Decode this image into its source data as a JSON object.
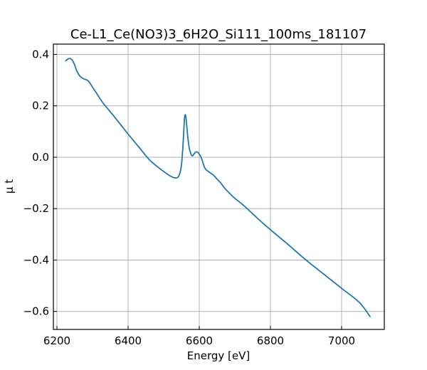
{
  "chart_data": {
    "type": "line",
    "title": "Ce-L1_Ce(NO3)3_6H2O_Si111_100ms_181107",
    "xlabel": "Energy [eV]",
    "ylabel": "μ t",
    "xlim": [
      6190,
      7120
    ],
    "ylim": [
      -0.67,
      0.44
    ],
    "xticks": [
      6200,
      6400,
      6600,
      6800,
      7000
    ],
    "xtick_labels": [
      "6200",
      "6400",
      "6600",
      "6800",
      "7000"
    ],
    "yticks": [
      0.4,
      0.2,
      0.0,
      -0.2,
      -0.4,
      -0.6
    ],
    "ytick_labels": [
      "0.4",
      "0.2",
      "0.0",
      "−0.2",
      "−0.4",
      "−0.6"
    ],
    "grid": true,
    "series": [
      {
        "color": "#1f77b4",
        "x": [
          6225,
          6232,
          6240,
          6248,
          6256,
          6265,
          6275,
          6285,
          6292,
          6300,
          6310,
          6320,
          6330,
          6345,
          6360,
          6380,
          6400,
          6430,
          6460,
          6490,
          6515,
          6530,
          6540,
          6546,
          6550,
          6553,
          6556,
          6559,
          6562,
          6565,
          6568,
          6572,
          6576,
          6580,
          6585,
          6590,
          6595,
          6600,
          6605,
          6610,
          6615,
          6620,
          6625,
          6630,
          6640,
          6650,
          6660,
          6670,
          6680,
          6700,
          6720,
          6740,
          6760,
          6780,
          6800,
          6850,
          6900,
          6950,
          7000,
          7050,
          7080
        ],
        "y": [
          0.375,
          0.383,
          0.382,
          0.365,
          0.335,
          0.315,
          0.305,
          0.3,
          0.29,
          0.272,
          0.252,
          0.23,
          0.21,
          0.185,
          0.16,
          0.125,
          0.09,
          0.04,
          -0.01,
          -0.045,
          -0.07,
          -0.08,
          -0.078,
          -0.06,
          -0.03,
          0.02,
          0.09,
          0.158,
          0.16,
          0.12,
          0.075,
          0.035,
          0.015,
          0.005,
          0.012,
          0.02,
          0.02,
          0.012,
          0.0,
          -0.02,
          -0.04,
          -0.05,
          -0.055,
          -0.06,
          -0.07,
          -0.085,
          -0.1,
          -0.118,
          -0.133,
          -0.16,
          -0.182,
          -0.207,
          -0.233,
          -0.258,
          -0.282,
          -0.34,
          -0.4,
          -0.455,
          -0.51,
          -0.565,
          -0.62
        ]
      }
    ]
  }
}
